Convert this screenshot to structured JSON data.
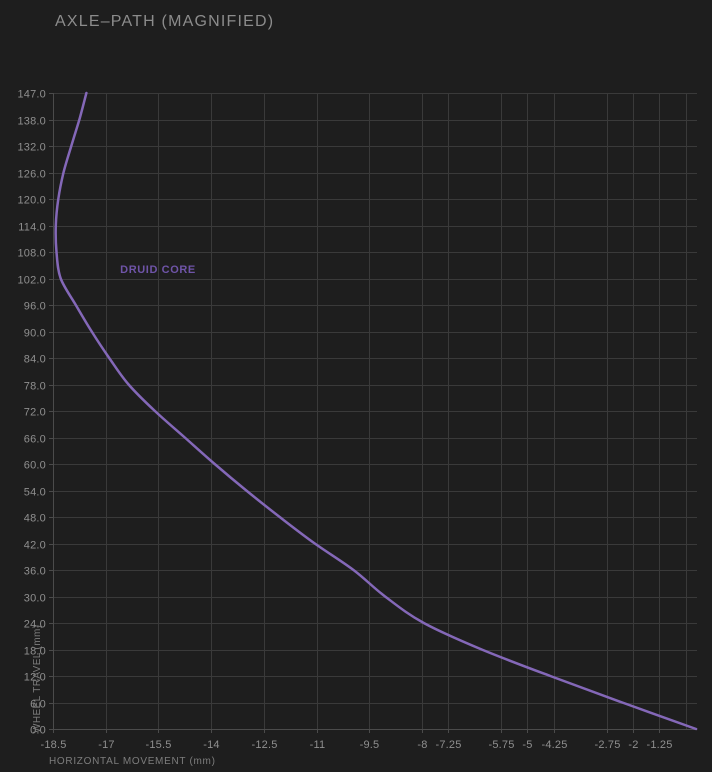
{
  "page": {
    "title": "AXLE–PATH (MAGNIFIED)"
  },
  "colors": {
    "background": "#1e1e1e",
    "gridline": "#3a3a3a",
    "axis_line": "#4b4b4b",
    "tick_label": "#8f8f8f",
    "axis_title": "#7d7d7d",
    "chart_title": "#8c8c8c",
    "curve": "#8468b8",
    "series_label": "#6f54a8"
  },
  "chart_data": {
    "type": "line",
    "title": "AXLE–PATH (MAGNIFIED)",
    "xlabel": "HORIZONTAL MOVEMENT (mm)",
    "ylabel": "WHEEL TRAVEL (mm)",
    "legend_position": "inline-annotation",
    "grid": true,
    "x_axis": {
      "min": -18.5,
      "max": -0.175,
      "labeled_ticks": [
        -18.5,
        -17,
        -15.5,
        -14,
        -12.5,
        -11,
        -9.5,
        -8,
        -7.25,
        -5.75,
        -5,
        -4.25,
        -2.75,
        -2,
        -1.25
      ],
      "unlabeled_gridlines": [
        -0.5
      ]
    },
    "y_axis": {
      "ticks": [
        0,
        6,
        12,
        18,
        24,
        30,
        36,
        42,
        48,
        54,
        60,
        66,
        72,
        78,
        84,
        90,
        96,
        102,
        108,
        114,
        120,
        126,
        132,
        138,
        147
      ],
      "tick_format": "one_decimal",
      "spacing": "evenly-spaced point scale (each tick one gridline row)"
    },
    "series": [
      {
        "name": "DRUID CORE",
        "color": "#8468b8",
        "travel_mm": [
          0,
          6,
          12,
          18,
          24,
          30,
          36,
          42,
          48,
          54,
          60,
          66,
          72,
          78,
          84,
          90,
          96,
          102,
          108,
          114,
          120,
          126,
          132,
          138,
          147
        ],
        "horizontal_mm": [
          -0.2,
          -2.3,
          -4.35,
          -6.3,
          -7.95,
          -9.05,
          -9.95,
          -11.05,
          -12.05,
          -13.0,
          -13.9,
          -14.75,
          -15.6,
          -16.35,
          -16.9,
          -17.4,
          -17.85,
          -18.28,
          -18.4,
          -18.42,
          -18.35,
          -18.2,
          -17.98,
          -17.75,
          -17.55
        ]
      }
    ]
  }
}
